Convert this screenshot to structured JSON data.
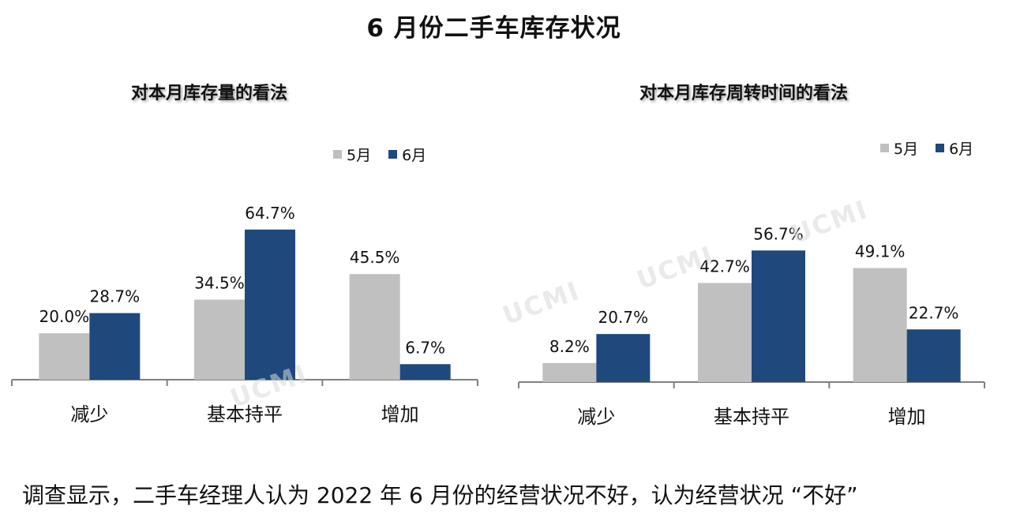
{
  "page": {
    "title": "6 月份二手车库存状况",
    "footer": "调查显示，二手车经理人认为 2022 年 6 月份的经营状况不好，认为经营状况 “不好”",
    "watermark": "UCMI"
  },
  "colors": {
    "may": "#c0c0c0",
    "june": "#1f497d",
    "axis": "#808080"
  },
  "chart_data": [
    {
      "type": "bar",
      "title": "对本月库存量的看法",
      "categories": [
        "减少",
        "基本持平",
        "增加"
      ],
      "series": [
        {
          "name": "5月",
          "values": [
            20.0,
            34.5,
            45.5
          ]
        },
        {
          "name": "6月",
          "values": [
            28.7,
            64.7,
            6.7
          ]
        }
      ],
      "value_labels": [
        [
          "20.0%",
          "34.5%",
          "45.5%"
        ],
        [
          "28.7%",
          "64.7%",
          "6.7%"
        ]
      ],
      "ylim": [
        0,
        100
      ],
      "grid": false,
      "legend": "top-right"
    },
    {
      "type": "bar",
      "title": "对本月库存周转时间的看法",
      "categories": [
        "减少",
        "基本持平",
        "增加"
      ],
      "series": [
        {
          "name": "5月",
          "values": [
            8.2,
            42.7,
            49.1
          ]
        },
        {
          "name": "6月",
          "values": [
            20.7,
            56.7,
            22.7
          ]
        }
      ],
      "value_labels": [
        [
          "8.2%",
          "42.7%",
          "49.1%"
        ],
        [
          "20.7%",
          "56.7%",
          "22.7%"
        ]
      ],
      "ylim": [
        0,
        100
      ],
      "grid": false,
      "legend": "top-right"
    }
  ]
}
